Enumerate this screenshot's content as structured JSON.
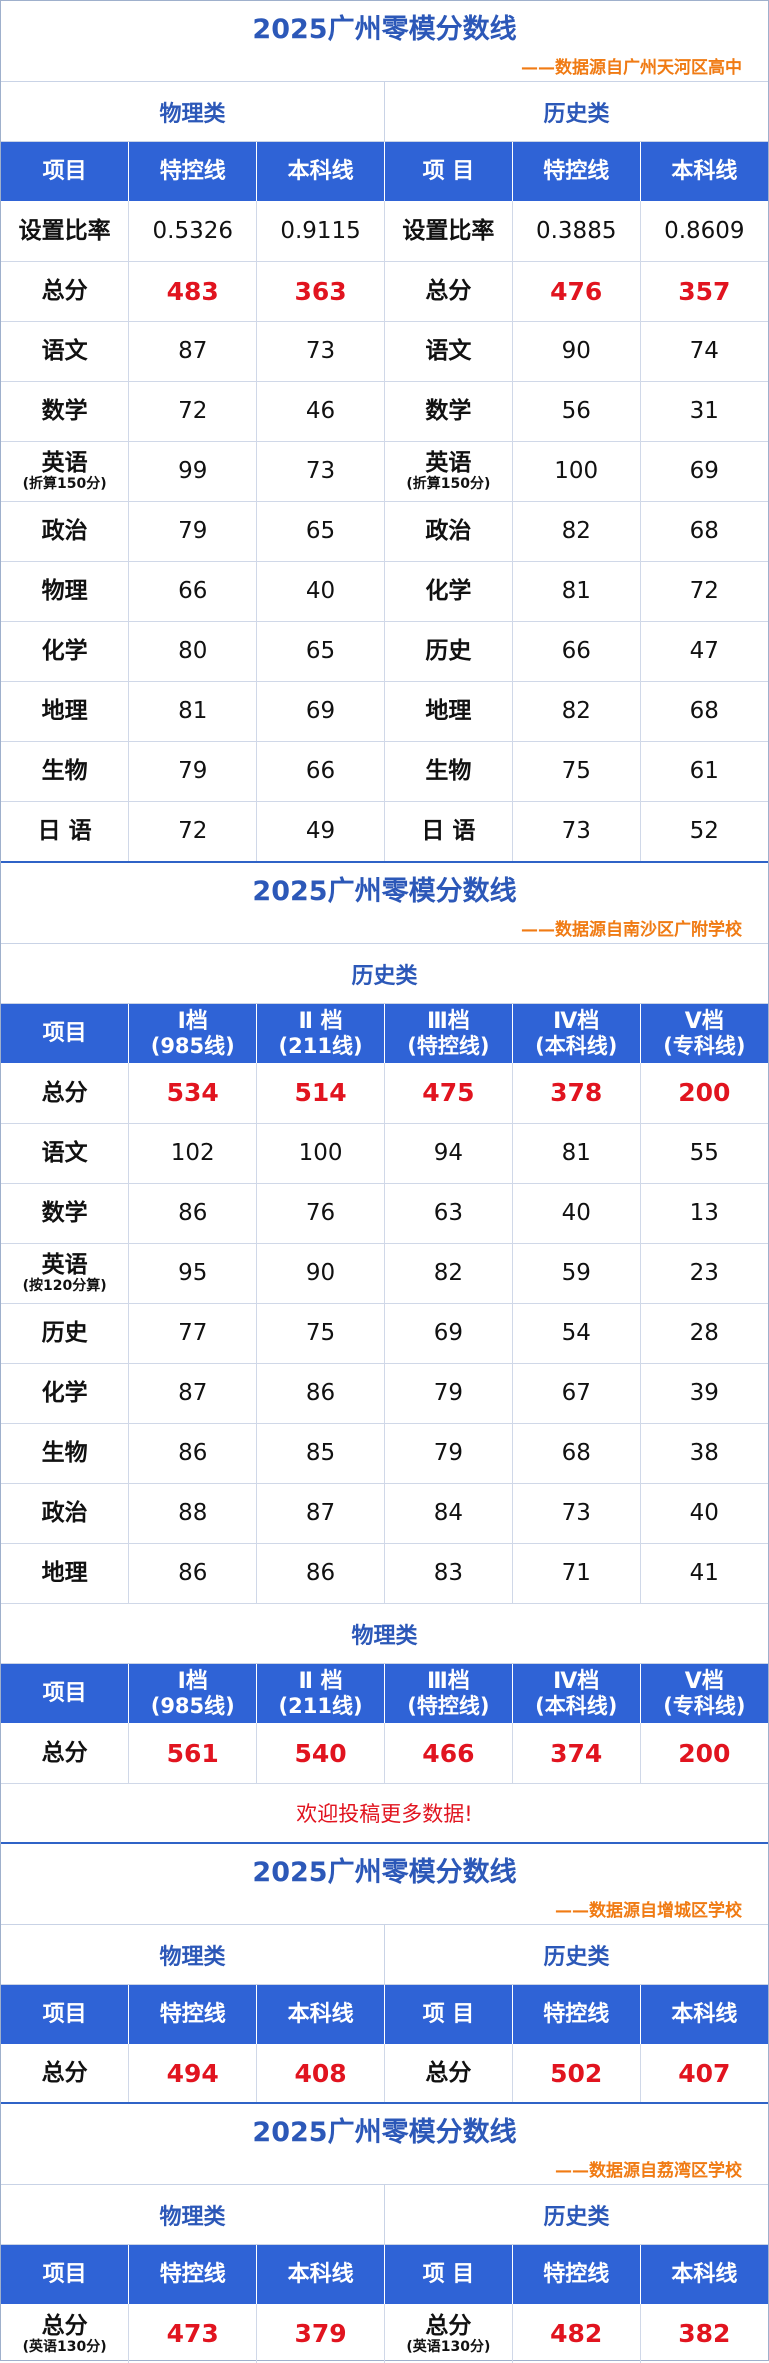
{
  "s1": {
    "title": "2025广州零模分数线",
    "source": "——数据源自广州天河区高中",
    "phys_head": "物理类",
    "hist_head": "历史类",
    "headers": [
      "项目",
      "特控线",
      "本科线",
      "项 目",
      "特控线",
      "本科线"
    ],
    "rows": [
      {
        "l": "设置比率",
        "a": "0.5326",
        "b": "0.9115",
        "r": "设置比率",
        "c": "0.3885",
        "d": "0.8609",
        "red": false
      },
      {
        "l": "总分",
        "a": "483",
        "b": "363",
        "r": "总分",
        "c": "476",
        "d": "357",
        "red": true
      },
      {
        "l": "语文",
        "a": "87",
        "b": "73",
        "r": "语文",
        "c": "90",
        "d": "74",
        "red": false
      },
      {
        "l": "数学",
        "a": "72",
        "b": "46",
        "r": "数学",
        "c": "56",
        "d": "31",
        "red": false
      },
      {
        "l": "英语",
        "ls": "(折算150分)",
        "a": "99",
        "b": "73",
        "r": "英语",
        "rs": "(折算150分)",
        "c": "100",
        "d": "69",
        "red": false
      },
      {
        "l": "政治",
        "a": "79",
        "b": "65",
        "r": "政治",
        "c": "82",
        "d": "68",
        "red": false
      },
      {
        "l": "物理",
        "a": "66",
        "b": "40",
        "r": "化学",
        "c": "81",
        "d": "72",
        "red": false
      },
      {
        "l": "化学",
        "a": "80",
        "b": "65",
        "r": "历史",
        "c": "66",
        "d": "47",
        "red": false
      },
      {
        "l": "地理",
        "a": "81",
        "b": "69",
        "r": "地理",
        "c": "82",
        "d": "68",
        "red": false
      },
      {
        "l": "生物",
        "a": "79",
        "b": "66",
        "r": "生物",
        "c": "75",
        "d": "61",
        "red": false
      },
      {
        "l": "日 语",
        "a": "72",
        "b": "49",
        "r": "日 语",
        "c": "73",
        "d": "52",
        "red": false
      }
    ]
  },
  "s2": {
    "title": "2025广州零模分数线",
    "source": "——数据源自南沙区广附学校",
    "hist_head": "历史类",
    "phys_head": "物理类",
    "headers": [
      {
        "t": "项目",
        "s": ""
      },
      {
        "t": "I档",
        "s": "(985线)"
      },
      {
        "t": "Ⅱ 档",
        "s": "(211线)"
      },
      {
        "t": "Ⅲ档",
        "s": "(特控线)"
      },
      {
        "t": "Ⅳ档",
        "s": "(本科线)"
      },
      {
        "t": "Ⅴ档",
        "s": "(专科线)"
      }
    ],
    "hist_rows": [
      {
        "l": "总分",
        "v": [
          "534",
          "514",
          "475",
          "378",
          "200"
        ],
        "red": true
      },
      {
        "l": "语文",
        "v": [
          "102",
          "100",
          "94",
          "81",
          "55"
        ],
        "red": false
      },
      {
        "l": "数学",
        "v": [
          "86",
          "76",
          "63",
          "40",
          "13"
        ],
        "red": false
      },
      {
        "l": "英语",
        "ls": "(按120分算)",
        "v": [
          "95",
          "90",
          "82",
          "59",
          "23"
        ],
        "red": false
      },
      {
        "l": "历史",
        "v": [
          "77",
          "75",
          "69",
          "54",
          "28"
        ],
        "red": false
      },
      {
        "l": "化学",
        "v": [
          "87",
          "86",
          "79",
          "67",
          "39"
        ],
        "red": false
      },
      {
        "l": "生物",
        "v": [
          "86",
          "85",
          "79",
          "68",
          "38"
        ],
        "red": false
      },
      {
        "l": "政治",
        "v": [
          "88",
          "87",
          "84",
          "73",
          "40"
        ],
        "red": false
      },
      {
        "l": "地理",
        "v": [
          "86",
          "86",
          "83",
          "71",
          "41"
        ],
        "red": false
      }
    ],
    "phys_rows": [
      {
        "l": "总分",
        "v": [
          "561",
          "540",
          "466",
          "374",
          "200"
        ],
        "red": true
      }
    ],
    "invite": "欢迎投稿更多数据!"
  },
  "s3": {
    "title": "2025广州零模分数线",
    "source": "——数据源自增城区学校",
    "phys_head": "物理类",
    "hist_head": "历史类",
    "headers": [
      "项目",
      "特控线",
      "本科线",
      "项 目",
      "特控线",
      "本科线"
    ],
    "rows": [
      {
        "l": "总分",
        "a": "494",
        "b": "408",
        "r": "总分",
        "c": "502",
        "d": "407",
        "red": true
      }
    ]
  },
  "s4": {
    "title": "2025广州零模分数线",
    "source": "——数据源自荔湾区学校",
    "phys_head": "物理类",
    "hist_head": "历史类",
    "headers": [
      "项目",
      "特控线",
      "本科线",
      "项 目",
      "特控线",
      "本科线"
    ],
    "rows": [
      {
        "l": "总分",
        "ls": "(英语130分)",
        "a": "473",
        "b": "379",
        "r": "总分",
        "rs": "(英语130分)",
        "c": "482",
        "d": "382",
        "red": true
      }
    ]
  }
}
